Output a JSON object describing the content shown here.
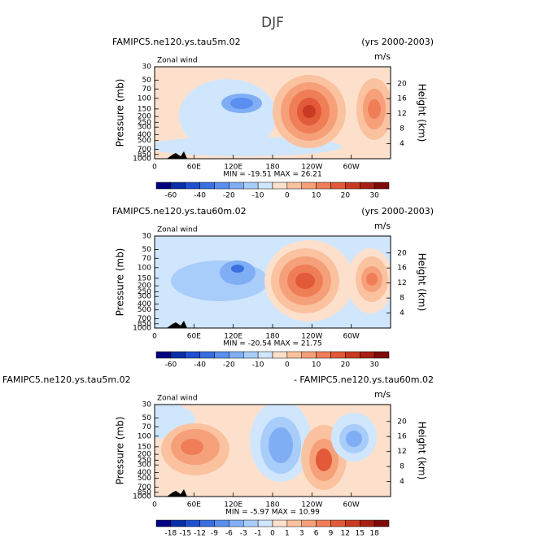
{
  "title": "DJF",
  "chart_data": [
    {
      "type": "contour",
      "left_title": "FAMIPC5.ne120.ys.tau5m.02",
      "right_title": "(yrs 2000-2003)",
      "subtitle": "Zonal wind",
      "units": "m/s",
      "ylabel": "Pressure (mb)",
      "y2label": "Height (km)",
      "stats": "MIN = -19.51   MAX =  26.21",
      "xlim": [
        0,
        360
      ],
      "xticks": [
        0,
        {
          "value": 60,
          "label": "60E"
        },
        {
          "value": 120,
          "label": "120E"
        },
        180,
        {
          "value": 240,
          "label": "120W"
        },
        {
          "value": 300,
          "label": "60W"
        }
      ],
      "ylim": [
        1000,
        30
      ],
      "log_y": true,
      "yticks": [
        30,
        50,
        70,
        100,
        150,
        200,
        250,
        300,
        400,
        500,
        700,
        850,
        1000
      ],
      "y2lim": [
        0,
        24.5
      ],
      "y2ticks": [
        4,
        8,
        12,
        16,
        20
      ],
      "colorbar": {
        "colors": [
          "#000080",
          "#0a2ea8",
          "#1f4fd0",
          "#3a6fe0",
          "#5a8ef0",
          "#80aef5",
          "#a8cdfa",
          "#d0e6fc",
          "#fde0cc",
          "#fbc2a0",
          "#f6a07a",
          "#ef7e57",
          "#e25a38",
          "#c93a22",
          "#a71f14",
          "#7f0a0a"
        ],
        "labels": [
          -60,
          -40,
          -20,
          -10,
          0,
          10,
          20,
          30
        ]
      }
    },
    {
      "type": "contour",
      "left_title": "FAMIPC5.ne120.ys.tau60m.02",
      "right_title": "(yrs 2000-2003)",
      "subtitle": "Zonal wind",
      "units": "m/s",
      "ylabel": "Pressure (mb)",
      "y2label": "Height (km)",
      "stats": "MIN = -20.54   MAX =  21.75",
      "xlim": [
        0,
        360
      ],
      "xticks": [
        0,
        {
          "value": 60,
          "label": "60E"
        },
        {
          "value": 120,
          "label": "120E"
        },
        180,
        {
          "value": 240,
          "label": "120W"
        },
        {
          "value": 300,
          "label": "60W"
        }
      ],
      "ylim": [
        1000,
        30
      ],
      "log_y": true,
      "yticks": [
        30,
        50,
        70,
        100,
        150,
        200,
        250,
        300,
        400,
        500,
        700,
        850,
        1000
      ],
      "y2lim": [
        0,
        24.5
      ],
      "y2ticks": [
        4,
        8,
        12,
        16,
        20
      ],
      "colorbar": {
        "colors": [
          "#000080",
          "#0a2ea8",
          "#1f4fd0",
          "#3a6fe0",
          "#5a8ef0",
          "#80aef5",
          "#a8cdfa",
          "#d0e6fc",
          "#fde0cc",
          "#fbc2a0",
          "#f6a07a",
          "#ef7e57",
          "#e25a38",
          "#c93a22",
          "#a71f14",
          "#7f0a0a"
        ],
        "labels": [
          -60,
          -40,
          -20,
          -10,
          0,
          10,
          20,
          30
        ]
      }
    },
    {
      "type": "contour",
      "left_title": "FAMIPC5.ne120.ys.tau5m.02",
      "right_title": "- FAMIPC5.ne120.ys.tau60m.02",
      "subtitle": "Zonal wind",
      "units": "m/s",
      "ylabel": "Pressure (mb)",
      "y2label": "Height (km)",
      "stats": "MIN = -5.97   MAX = 10.99",
      "xlim": [
        0,
        360
      ],
      "xticks": [
        0,
        {
          "value": 60,
          "label": "60E"
        },
        {
          "value": 120,
          "label": "120E"
        },
        180,
        {
          "value": 240,
          "label": "120W"
        },
        {
          "value": 300,
          "label": "60W"
        }
      ],
      "ylim": [
        1000,
        30
      ],
      "log_y": true,
      "yticks": [
        30,
        50,
        70,
        100,
        150,
        200,
        250,
        300,
        400,
        500,
        700,
        850,
        1000
      ],
      "y2lim": [
        0,
        24.5
      ],
      "y2ticks": [
        4,
        8,
        12,
        16,
        20
      ],
      "colorbar": {
        "colors": [
          "#000080",
          "#0a2ea8",
          "#1f4fd0",
          "#3a6fe0",
          "#5a8ef0",
          "#80aef5",
          "#a8cdfa",
          "#d0e6fc",
          "#fde0cc",
          "#fbc2a0",
          "#f6a07a",
          "#ef7e57",
          "#e25a38",
          "#c93a22",
          "#a71f14",
          "#7f0a0a"
        ],
        "labels": [
          -18,
          -15,
          -12,
          -9,
          -6,
          -3,
          -1,
          0,
          1,
          3,
          6,
          9,
          12,
          15,
          18
        ]
      }
    }
  ]
}
